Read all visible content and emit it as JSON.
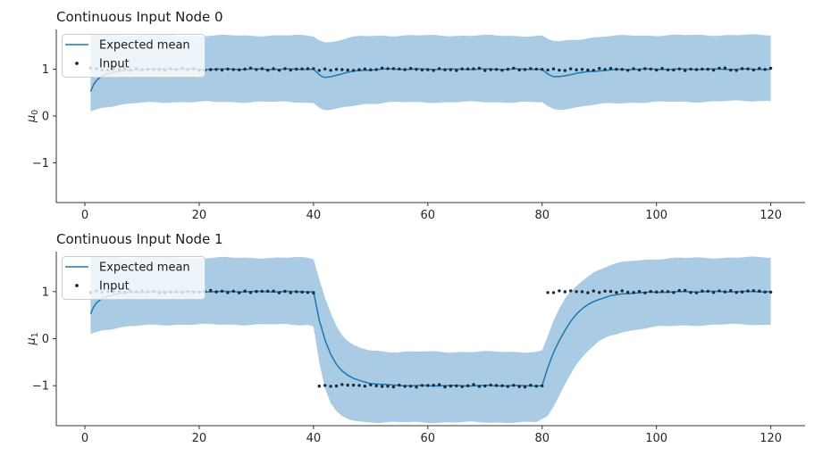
{
  "figure": {
    "background": "#ffffff"
  },
  "colors": {
    "mean_line": "#1f77b4",
    "band_fill": "#a9cbe3",
    "input_dot": "#1c2a38",
    "spine": "#333333",
    "tick_label": "#262626",
    "legend_border": "#cccccc"
  },
  "chart_data": [
    {
      "type": "line",
      "title": "Continuous Input Node 0",
      "ylabel_base": "μ",
      "ylabel_sub": "0",
      "xlabel": "",
      "xticks": [
        0,
        20,
        40,
        60,
        80,
        100,
        120
      ],
      "yticks": [
        -1,
        0,
        1
      ],
      "xlim": [
        -5,
        126
      ],
      "ylim": [
        -1.85,
        1.85
      ],
      "grid": false,
      "legend_position": "upper-left",
      "legend": [
        {
          "label": "Expected mean",
          "marker": "line"
        },
        {
          "label": "Input",
          "marker": "dot"
        }
      ],
      "series": {
        "expected_mean_keyframes": [
          [
            1,
            0.52
          ],
          [
            1.5,
            0.66
          ],
          [
            2,
            0.75
          ],
          [
            3,
            0.86
          ],
          [
            4,
            0.91
          ],
          [
            5,
            0.94
          ],
          [
            6.5,
            0.965
          ],
          [
            8,
            0.98
          ],
          [
            10,
            0.99
          ],
          [
            13,
            1.0
          ],
          [
            40,
            1.0
          ],
          [
            41,
            0.88
          ],
          [
            41.8,
            0.815
          ],
          [
            43,
            0.84
          ],
          [
            44,
            0.875
          ],
          [
            45.5,
            0.92
          ],
          [
            47,
            0.955
          ],
          [
            49,
            0.98
          ],
          [
            52,
            1.0
          ],
          [
            80,
            1.0
          ],
          [
            81,
            0.89
          ],
          [
            82,
            0.835
          ],
          [
            83,
            0.845
          ],
          [
            84.5,
            0.875
          ],
          [
            86,
            0.91
          ],
          [
            88,
            0.945
          ],
          [
            90,
            0.97
          ],
          [
            93,
            0.99
          ],
          [
            96,
            1.0
          ],
          [
            120,
            1.0
          ]
        ],
        "band_top_keyframes": [
          [
            1,
            1.74
          ],
          [
            6,
            1.73
          ],
          [
            20,
            1.72
          ],
          [
            38,
            1.72
          ],
          [
            40,
            1.71
          ],
          [
            41,
            1.63
          ],
          [
            42,
            1.58
          ],
          [
            43,
            1.58
          ],
          [
            44,
            1.61
          ],
          [
            46,
            1.66
          ],
          [
            48,
            1.7
          ],
          [
            52,
            1.72
          ],
          [
            70,
            1.72
          ],
          [
            80,
            1.71
          ],
          [
            81,
            1.64
          ],
          [
            82,
            1.6
          ],
          [
            83,
            1.59
          ],
          [
            85,
            1.62
          ],
          [
            88,
            1.67
          ],
          [
            91,
            1.7
          ],
          [
            95,
            1.72
          ],
          [
            110,
            1.73
          ],
          [
            120,
            1.73
          ]
        ],
        "band_bottom_keyframes": [
          [
            1,
            0.1
          ],
          [
            3,
            0.18
          ],
          [
            6,
            0.24
          ],
          [
            10,
            0.28
          ],
          [
            16,
            0.3
          ],
          [
            38,
            0.3
          ],
          [
            40,
            0.28
          ],
          [
            41,
            0.18
          ],
          [
            42,
            0.13
          ],
          [
            43,
            0.12
          ],
          [
            44,
            0.14
          ],
          [
            46,
            0.2
          ],
          [
            49,
            0.26
          ],
          [
            53,
            0.29
          ],
          [
            70,
            0.3
          ],
          [
            80,
            0.29
          ],
          [
            81,
            0.2
          ],
          [
            82,
            0.15
          ],
          [
            83,
            0.14
          ],
          [
            85,
            0.17
          ],
          [
            88,
            0.22
          ],
          [
            92,
            0.27
          ],
          [
            96,
            0.29
          ],
          [
            110,
            0.31
          ],
          [
            120,
            0.33
          ]
        ],
        "input_segments": [
          {
            "x_start": 1,
            "x_end": 120,
            "y": 1
          }
        ]
      }
    },
    {
      "type": "line",
      "title": "Continuous Input Node 1",
      "ylabel_base": "μ",
      "ylabel_sub": "1",
      "xlabel": "",
      "xticks": [
        0,
        20,
        40,
        60,
        80,
        100,
        120
      ],
      "yticks": [
        -1,
        0,
        1
      ],
      "xlim": [
        -5,
        126
      ],
      "ylim": [
        -1.85,
        1.85
      ],
      "grid": false,
      "legend_position": "upper-left",
      "legend": [
        {
          "label": "Expected mean",
          "marker": "line"
        },
        {
          "label": "Input",
          "marker": "dot"
        }
      ],
      "series": {
        "expected_mean_keyframes": [
          [
            1,
            0.52
          ],
          [
            1.5,
            0.66
          ],
          [
            2,
            0.75
          ],
          [
            3,
            0.86
          ],
          [
            4,
            0.91
          ],
          [
            5,
            0.94
          ],
          [
            6.5,
            0.965
          ],
          [
            8,
            0.98
          ],
          [
            10,
            0.99
          ],
          [
            13,
            1.0
          ],
          [
            40,
            1.0
          ],
          [
            41,
            0.39
          ],
          [
            42,
            -0.03
          ],
          [
            43,
            -0.33
          ],
          [
            44,
            -0.54
          ],
          [
            45,
            -0.68
          ],
          [
            46,
            -0.78
          ],
          [
            47,
            -0.85
          ],
          [
            48,
            -0.89
          ],
          [
            50,
            -0.95
          ],
          [
            53,
            -0.985
          ],
          [
            57,
            -1.0
          ],
          [
            80,
            -1.0
          ],
          [
            81,
            -0.62
          ],
          [
            82,
            -0.3
          ],
          [
            83,
            -0.04
          ],
          [
            84,
            0.18
          ],
          [
            85,
            0.37
          ],
          [
            86,
            0.52
          ],
          [
            87,
            0.63
          ],
          [
            88,
            0.72
          ],
          [
            89,
            0.79
          ],
          [
            90,
            0.84
          ],
          [
            92,
            0.91
          ],
          [
            94,
            0.95
          ],
          [
            96,
            0.97
          ],
          [
            99,
            0.985
          ],
          [
            103,
            0.995
          ],
          [
            108,
            1.0
          ],
          [
            120,
            1.0
          ]
        ],
        "band_top_keyframes": [
          [
            1,
            1.74
          ],
          [
            6,
            1.73
          ],
          [
            20,
            1.72
          ],
          [
            39,
            1.72
          ],
          [
            40,
            1.7
          ],
          [
            41,
            1.28
          ],
          [
            42,
            0.88
          ],
          [
            43,
            0.55
          ],
          [
            44,
            0.28
          ],
          [
            45,
            0.08
          ],
          [
            46,
            -0.06
          ],
          [
            47,
            -0.15
          ],
          [
            48,
            -0.2
          ],
          [
            50,
            -0.25
          ],
          [
            53,
            -0.275
          ],
          [
            57,
            -0.28
          ],
          [
            79,
            -0.28
          ],
          [
            80,
            -0.26
          ],
          [
            81,
            0.05
          ],
          [
            82,
            0.38
          ],
          [
            83,
            0.63
          ],
          [
            84,
            0.84
          ],
          [
            85,
            1.0
          ],
          [
            86,
            1.13
          ],
          [
            87,
            1.24
          ],
          [
            88,
            1.33
          ],
          [
            89,
            1.41
          ],
          [
            90,
            1.47
          ],
          [
            92,
            1.56
          ],
          [
            94,
            1.62
          ],
          [
            96,
            1.66
          ],
          [
            99,
            1.69
          ],
          [
            103,
            1.71
          ],
          [
            108,
            1.72
          ],
          [
            120,
            1.73
          ]
        ],
        "band_bottom_keyframes": [
          [
            1,
            0.1
          ],
          [
            3,
            0.18
          ],
          [
            6,
            0.24
          ],
          [
            10,
            0.28
          ],
          [
            16,
            0.3
          ],
          [
            39,
            0.3
          ],
          [
            40,
            0.26
          ],
          [
            41,
            -0.5
          ],
          [
            42,
            -1.05
          ],
          [
            43,
            -1.38
          ],
          [
            44,
            -1.56
          ],
          [
            45,
            -1.66
          ],
          [
            46,
            -1.71
          ],
          [
            47,
            -1.74
          ],
          [
            49,
            -1.77
          ],
          [
            52,
            -1.78
          ],
          [
            79,
            -1.78
          ],
          [
            81,
            -1.65
          ],
          [
            82,
            -1.45
          ],
          [
            83,
            -1.2
          ],
          [
            84,
            -0.95
          ],
          [
            85,
            -0.74
          ],
          [
            86,
            -0.55
          ],
          [
            87,
            -0.4
          ],
          [
            88,
            -0.26
          ],
          [
            90,
            -0.06
          ],
          [
            92,
            0.06
          ],
          [
            94,
            0.14
          ],
          [
            97,
            0.21
          ],
          [
            100,
            0.25
          ],
          [
            105,
            0.28
          ],
          [
            112,
            0.3
          ],
          [
            120,
            0.3
          ]
        ],
        "input_segments": [
          {
            "x_start": 1,
            "x_end": 40,
            "y": 1
          },
          {
            "x_start": 41,
            "x_end": 80,
            "y": -1
          },
          {
            "x_start": 81,
            "x_end": 120,
            "y": 1
          }
        ]
      }
    }
  ]
}
